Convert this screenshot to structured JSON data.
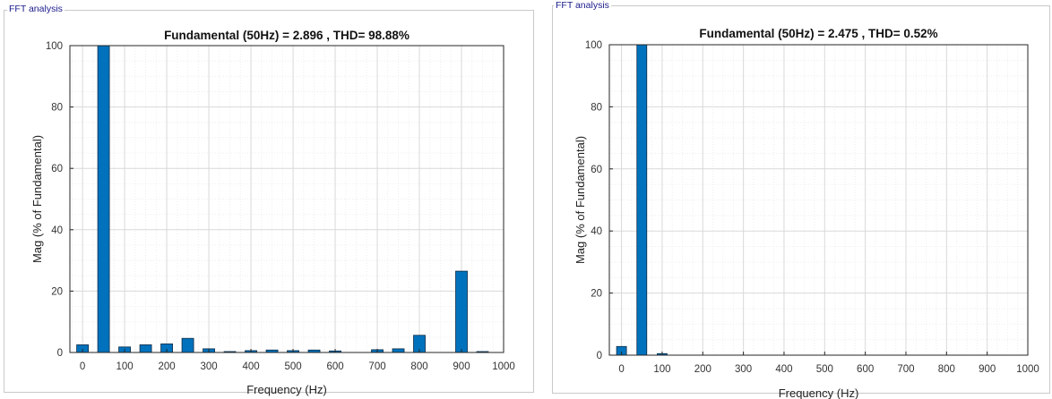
{
  "panels": [
    {
      "frame_label": "FFT analysis"
    },
    {
      "frame_label": "FFT analysis"
    }
  ],
  "colors": {
    "bar": "#0072bd",
    "bar_edge": "#0b2a45",
    "grid_major": "#d9d9d9",
    "grid_minor": "#eeeeee",
    "frame_label": "#1a1a8c"
  },
  "chart_data": [
    {
      "type": "bar",
      "title": "Fundamental (50Hz) = 2.896 , THD= 98.88%",
      "xlabel": "Frequency (Hz)",
      "ylabel": "Mag (% of Fundamental)",
      "xlim": [
        -30,
        1000
      ],
      "ylim": [
        0,
        100
      ],
      "xticks": [
        0,
        100,
        200,
        300,
        400,
        500,
        600,
        700,
        800,
        900,
        1000
      ],
      "yticks": [
        0,
        20,
        40,
        60,
        80,
        100
      ],
      "grid": true,
      "x": [
        0,
        50,
        100,
        150,
        200,
        250,
        300,
        350,
        400,
        450,
        500,
        550,
        600,
        650,
        700,
        750,
        800,
        850,
        900,
        950
      ],
      "values": [
        2.5,
        100,
        1.8,
        2.5,
        2.8,
        4.6,
        1.2,
        0.3,
        0.6,
        0.8,
        0.6,
        0.8,
        0.5,
        0,
        0.9,
        1.2,
        5.6,
        0,
        26.5,
        0.3
      ]
    },
    {
      "type": "bar",
      "title": "Fundamental (50Hz) = 2.475 , THD= 0.52%",
      "xlabel": "Frequency (Hz)",
      "ylabel": "Mag (% of Fundamental)",
      "xlim": [
        -30,
        1000
      ],
      "ylim": [
        0,
        100
      ],
      "xticks": [
        0,
        100,
        200,
        300,
        400,
        500,
        600,
        700,
        800,
        900,
        1000
      ],
      "yticks": [
        0,
        20,
        40,
        60,
        80,
        100
      ],
      "grid": true,
      "x": [
        0,
        50,
        100
      ],
      "values": [
        2.8,
        100,
        0.5
      ]
    }
  ]
}
